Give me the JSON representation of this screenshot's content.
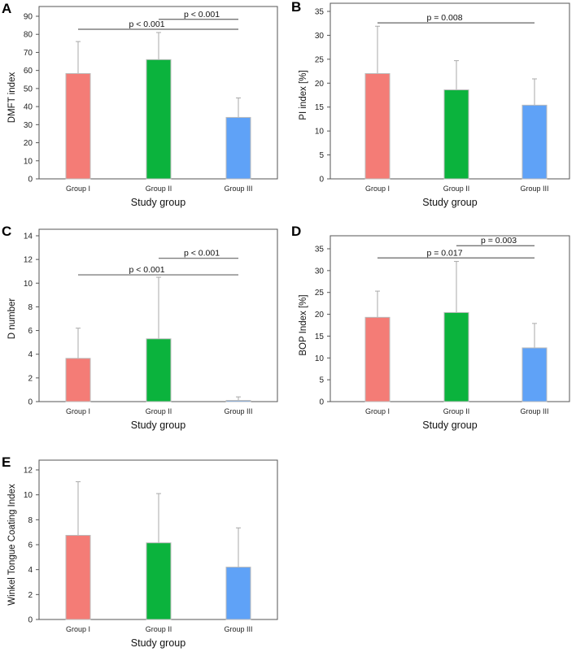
{
  "colors": {
    "Group I": "#f47c76",
    "Group II": "#0bb33d",
    "Group III": "#5fa2f7",
    "axis": "#555555",
    "err": "#aaaaaa",
    "bracket": "#666666"
  },
  "chart_data": [
    {
      "panel": "A",
      "type": "bar",
      "categories": [
        "Group I",
        "Group II",
        "Group III"
      ],
      "values": [
        58.3,
        66,
        34
      ],
      "error_upper": [
        76,
        81,
        44.8
      ],
      "xlabel": "Study group",
      "ylabel": "DMFT index",
      "ylim": [
        0,
        90
      ],
      "yticks": [
        0,
        10,
        20,
        30,
        40,
        50,
        60,
        70,
        80,
        90
      ],
      "annotations": [
        {
          "text": "p < 0.001",
          "from": "Group II",
          "to": "Group III",
          "y": 88.3
        },
        {
          "text": "p < 0.001",
          "from": "Group I",
          "to": "Group III",
          "y": 82.8
        }
      ]
    },
    {
      "panel": "B",
      "type": "bar",
      "categories": [
        "Group I",
        "Group II",
        "Group III"
      ],
      "values": [
        22,
        18.6,
        15.4
      ],
      "error_upper": [
        31.9,
        24.7,
        20.9
      ],
      "xlabel": "Study group",
      "ylabel": "PI index [%]",
      "ylim": [
        0,
        35
      ],
      "yticks": [
        0,
        5,
        10,
        15,
        20,
        25,
        30,
        35
      ],
      "annotations": [
        {
          "text": "p = 0.008",
          "from": "Group I",
          "to": "Group III",
          "y": 32.6
        }
      ]
    },
    {
      "panel": "C",
      "type": "bar",
      "categories": [
        "Group I",
        "Group II",
        "Group III"
      ],
      "values": [
        3.65,
        5.3,
        0.1
      ],
      "error_upper": [
        6.2,
        10.5,
        0.4
      ],
      "xlabel": "Study group",
      "ylabel": "D number",
      "ylim": [
        0,
        14
      ],
      "yticks": [
        0,
        2,
        4,
        6,
        8,
        10,
        12,
        14
      ],
      "annotations": [
        {
          "text": "p < 0.001",
          "from": "Group II",
          "to": "Group III",
          "y": 12.1
        },
        {
          "text": "p < 0.001",
          "from": "Group I",
          "to": "Group III",
          "y": 10.7
        }
      ]
    },
    {
      "panel": "D",
      "type": "bar",
      "categories": [
        "Group I",
        "Group II",
        "Group III"
      ],
      "values": [
        19.3,
        20.4,
        12.3
      ],
      "error_upper": [
        25.3,
        32.1,
        17.9
      ],
      "xlabel": "Study group",
      "ylabel": "BOP Index [%]",
      "ylim": [
        0,
        35
      ],
      "yticks": [
        0,
        5,
        10,
        15,
        20,
        25,
        30,
        35
      ],
      "annotations": [
        {
          "text": "p = 0.003",
          "from": "Group II",
          "to": "Group III",
          "y": 35.7
        },
        {
          "text": "p = 0.017",
          "from": "Group I",
          "to": "Group III",
          "y": 32.9
        }
      ]
    },
    {
      "panel": "E",
      "type": "bar",
      "categories": [
        "Group I",
        "Group II",
        "Group III"
      ],
      "values": [
        6.75,
        6.15,
        4.2
      ],
      "error_upper": [
        11.05,
        10.1,
        7.35
      ],
      "xlabel": "Study group",
      "ylabel": "Winkel Tongue Coating Index",
      "ylim": [
        0,
        12
      ],
      "yticks": [
        0,
        2,
        4,
        6,
        8,
        10,
        12
      ],
      "annotations": []
    }
  ]
}
